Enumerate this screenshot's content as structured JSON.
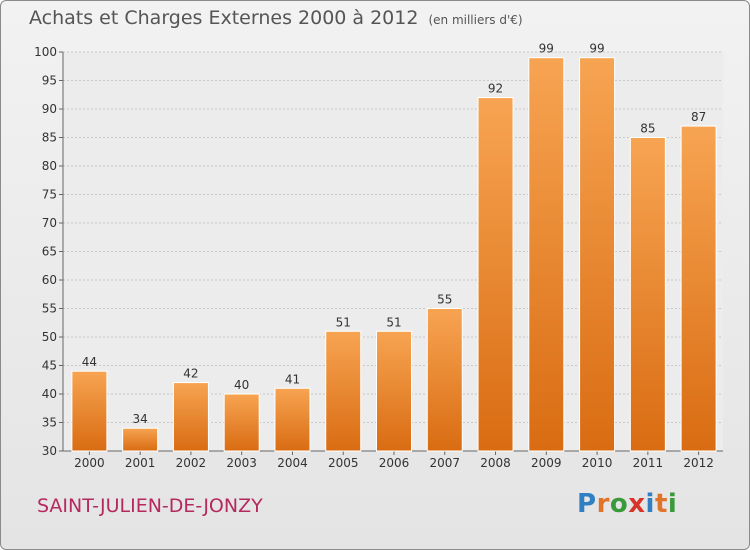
{
  "title": "Achats et Charges Externes 2000 à 2012",
  "unit_note": "(en milliers d'€)",
  "commune": "SAINT-JULIEN-DE-JONZY",
  "logo": {
    "text": "Proxiti",
    "letter_colors": [
      "#2f7fc2",
      "#e0742a",
      "#3a9a3a",
      "#d8352a",
      "#2f7fc2",
      "#e0742a",
      "#3a9a3a"
    ]
  },
  "colors": {
    "bar_light": "#f7a452",
    "bar_dark": "#d96c12",
    "title": "#555555",
    "commune": "#b5295e"
  },
  "chart_data": {
    "type": "bar",
    "title": "Achats et Charges Externes 2000 à 2012",
    "subtitle": "(en milliers d'€)",
    "categories": [
      "2000",
      "2001",
      "2002",
      "2003",
      "2004",
      "2005",
      "2006",
      "2007",
      "2008",
      "2009",
      "2010",
      "2011",
      "2012"
    ],
    "values": [
      44,
      34,
      42,
      40,
      41,
      51,
      51,
      55,
      92,
      99,
      99,
      85,
      87
    ],
    "ylim": [
      30,
      100
    ],
    "yticks": [
      30,
      35,
      40,
      45,
      50,
      55,
      60,
      65,
      70,
      75,
      80,
      85,
      90,
      95,
      100
    ],
    "grid": true,
    "data_labels": true,
    "xlabel": "",
    "ylabel": ""
  }
}
